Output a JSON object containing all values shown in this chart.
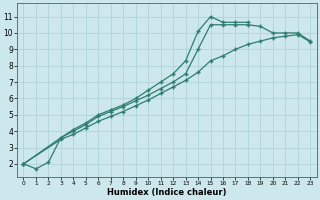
{
  "bg_color": "#cce8ec",
  "line_color": "#2e7d6e",
  "grid_color": "#aacdd4",
  "xlabel": "Humidex (Indice chaleur)",
  "xlim": [
    -0.5,
    23.5
  ],
  "ylim": [
    1.2,
    11.8
  ],
  "xticks": [
    0,
    1,
    2,
    3,
    4,
    5,
    6,
    7,
    8,
    9,
    10,
    11,
    12,
    13,
    14,
    15,
    16,
    17,
    18,
    19,
    20,
    21,
    22,
    23
  ],
  "yticks": [
    2,
    3,
    4,
    5,
    6,
    7,
    8,
    9,
    10,
    11
  ],
  "line1_x": [
    0,
    1,
    2,
    3,
    4,
    5,
    6,
    7,
    8,
    9,
    10,
    11,
    12,
    13,
    14,
    15,
    16,
    17,
    18
  ],
  "line1_y": [
    2.0,
    1.7,
    2.1,
    3.6,
    4.1,
    4.5,
    5.0,
    5.3,
    5.6,
    6.0,
    6.5,
    7.0,
    7.5,
    8.3,
    10.1,
    11.0,
    10.65,
    10.65,
    10.65
  ],
  "line2_x": [
    0,
    3,
    4,
    5,
    6,
    7,
    8,
    9,
    10,
    11,
    12,
    13,
    14,
    15,
    16,
    17,
    18,
    19,
    20,
    21,
    22,
    23
  ],
  "line2_y": [
    2.0,
    3.6,
    4.0,
    4.4,
    4.9,
    5.2,
    5.5,
    5.85,
    6.2,
    6.6,
    7.0,
    7.5,
    9.0,
    10.5,
    10.5,
    10.5,
    10.5,
    10.4,
    10.0,
    10.0,
    10.0,
    9.5
  ],
  "line3_x": [
    0,
    3,
    4,
    5,
    6,
    7,
    8,
    9,
    10,
    11,
    12,
    13,
    14,
    15,
    16,
    17,
    18,
    19,
    20,
    21,
    22,
    23
  ],
  "line3_y": [
    2.0,
    3.5,
    3.8,
    4.2,
    4.6,
    4.9,
    5.2,
    5.55,
    5.9,
    6.3,
    6.7,
    7.1,
    7.6,
    8.3,
    8.6,
    9.0,
    9.3,
    9.5,
    9.7,
    9.8,
    9.9,
    9.45
  ]
}
